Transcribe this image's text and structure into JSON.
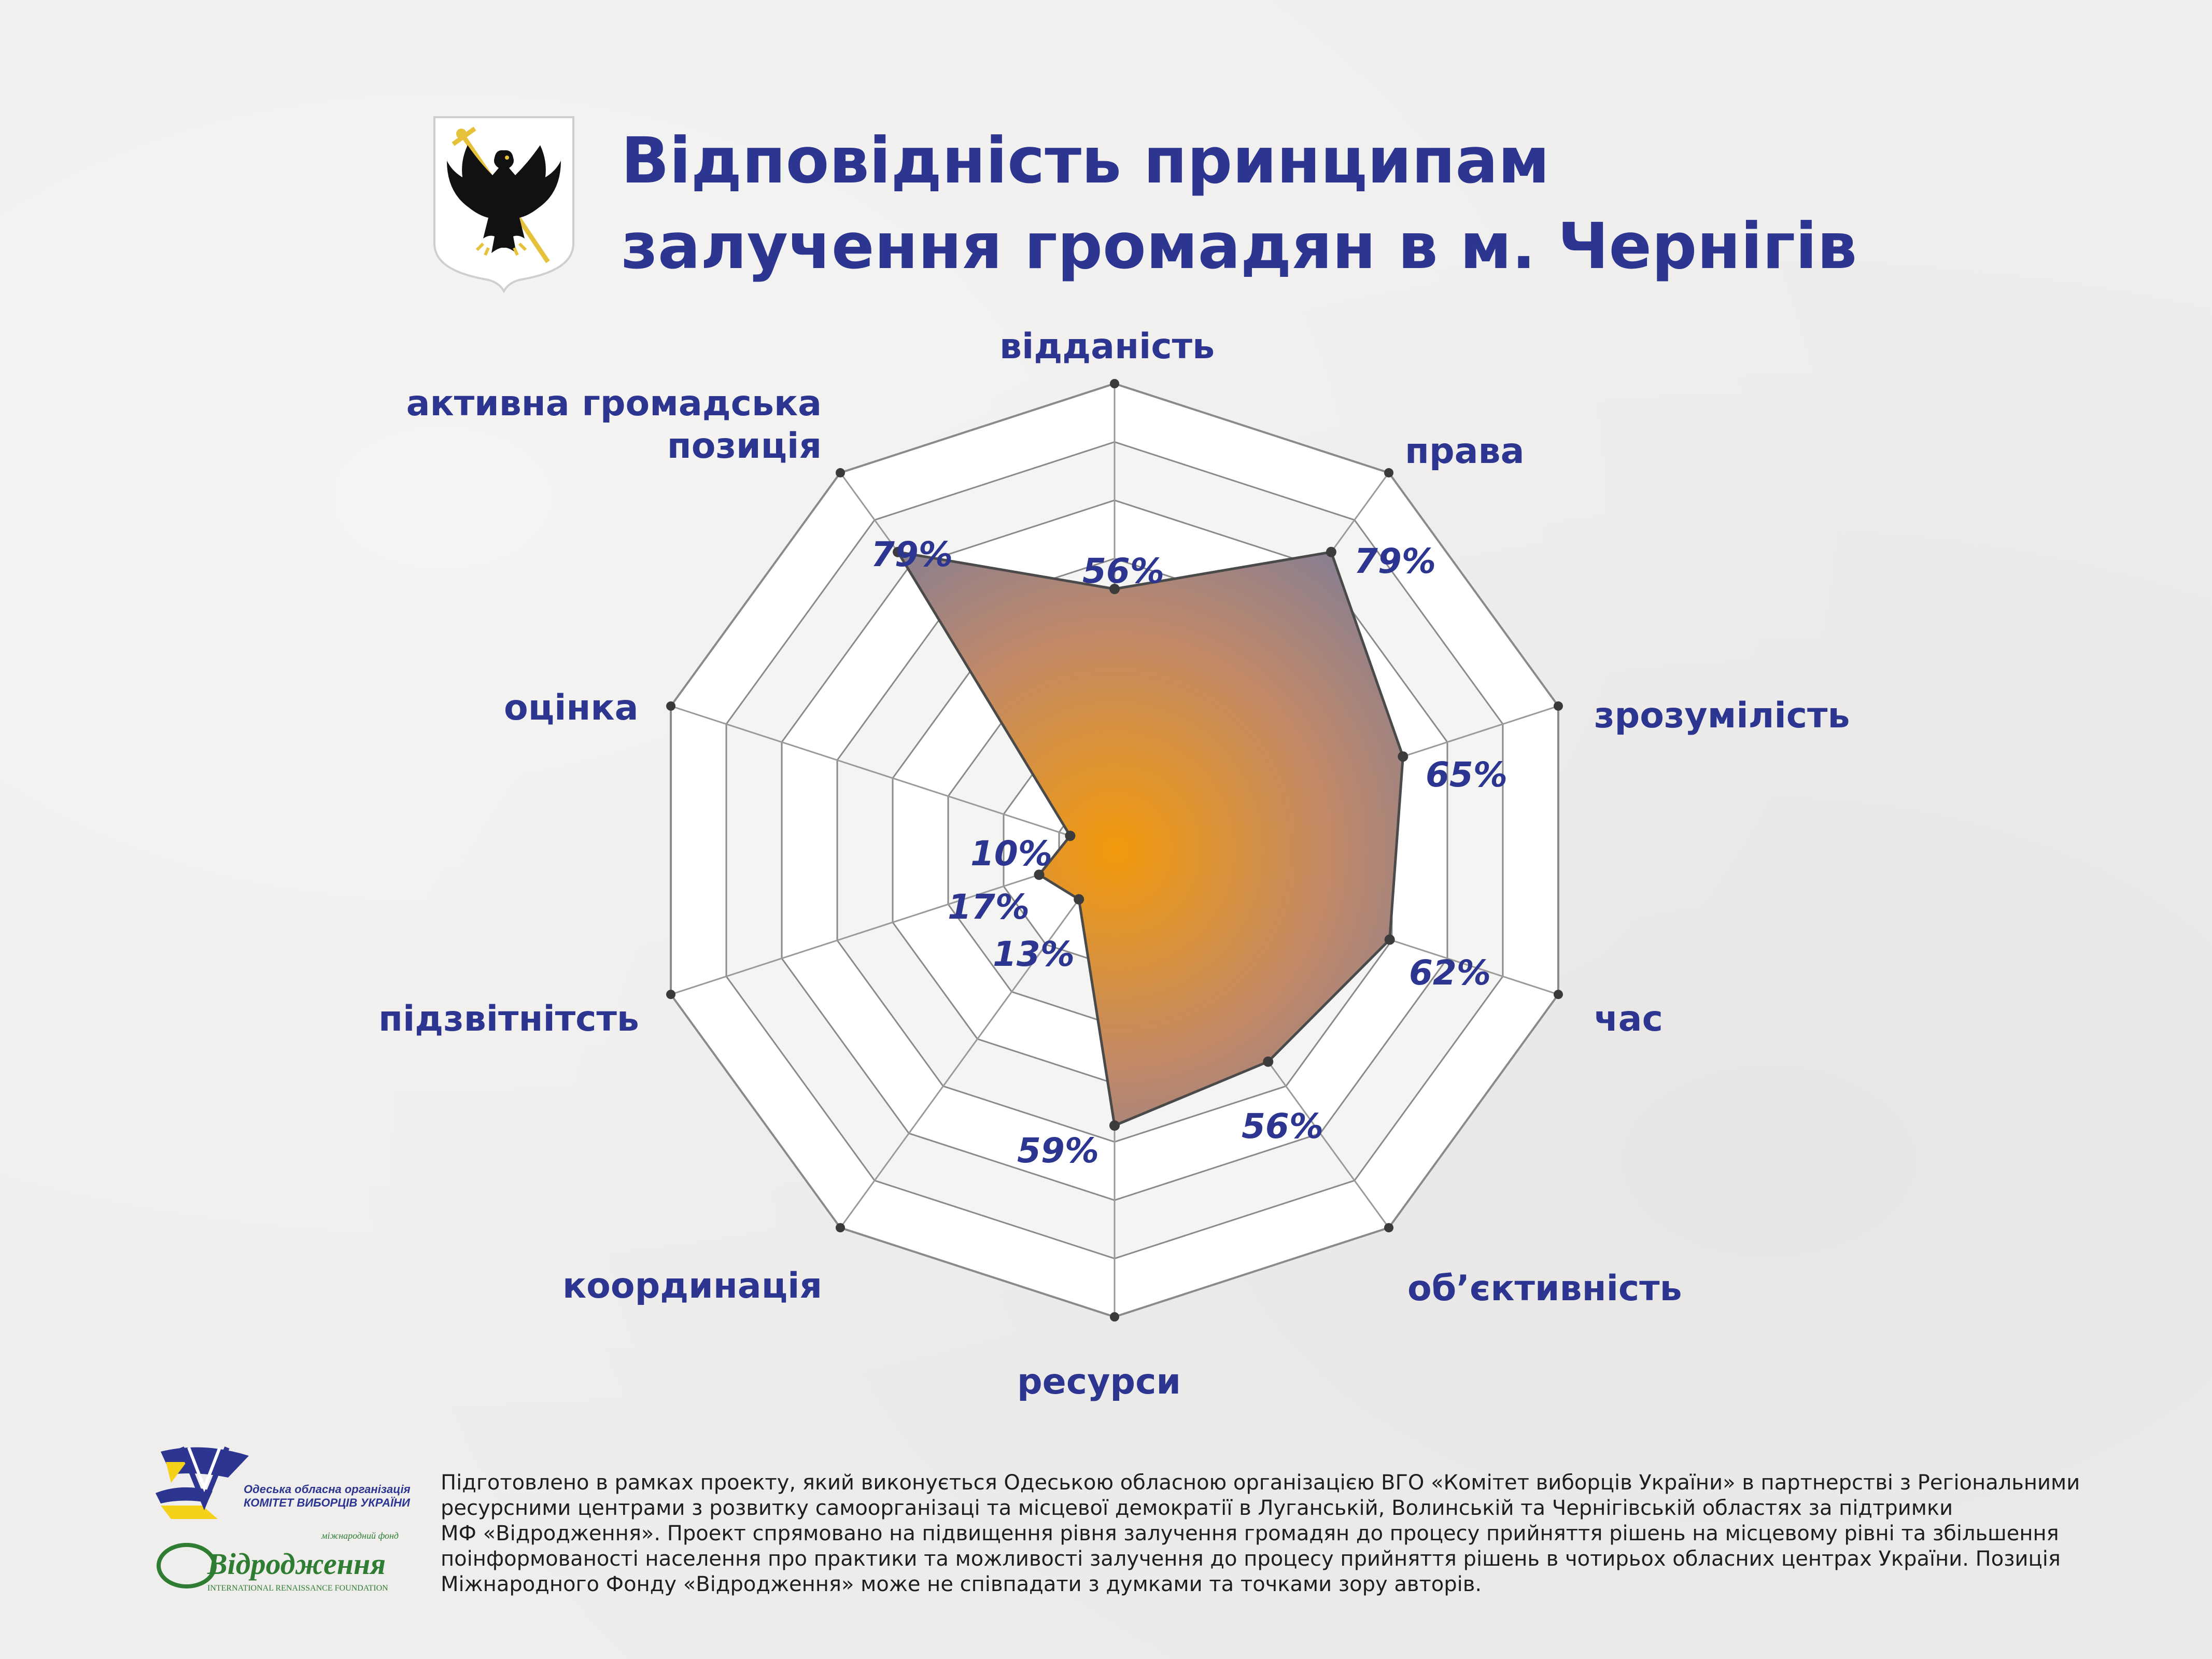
{
  "header": {
    "title_lines": [
      "Відповідність принципам",
      "залучення громадян в м. Чернігів"
    ]
  },
  "colors": {
    "title": "#2c3590",
    "grid": "#8a8a8a",
    "fill_center": "#f29a0c",
    "fill_edge": "#7a7c9a",
    "polygon_stroke": "#4a4a4a"
  },
  "chart_data": {
    "type": "radar",
    "scale": [
      0,
      100
    ],
    "grid_rings": 8,
    "categories": [
      "відданість",
      "права",
      "зрозумілість",
      "час",
      "об’єктивність",
      "ресурси",
      "координація",
      "підзвітнітсть",
      "оцінка",
      "активна громадська позиція"
    ],
    "values": [
      56,
      79,
      65,
      62,
      56,
      59,
      13,
      17,
      10,
      79
    ],
    "value_labels": [
      "56%",
      "79%",
      "65%",
      "62%",
      "56%",
      "59%",
      "13%",
      "17%",
      "10%",
      "79%"
    ]
  },
  "footer": {
    "org_logo_text": [
      "Одеська обласна організація",
      "КОМІТЕТ ВИБОРЦІВ УКРАЇНИ"
    ],
    "foundation_logo_text": {
      "small": "міжнародний фонд",
      "name": "Відродження",
      "english": "INTERNATIONAL RENAISSANCE FOUNDATION"
    },
    "text_lines": [
      "Підготовлено в рамках проекту, який виконується Одеською обласною організацією ВГО «Комітет виборців України» в партнерстві з Регіональними",
      "ресурсними центрами з розвитку самоорганізаці та місцевої демократії в Луганській, Волинській та Чернігівській областях за підтримки",
      "МФ «Відродження». Проект спрямовано на підвищення рівня залучення громадян до процесу прийняття рішень на місцевому рівні та збільшення",
      "поінформованості населення про практики та можливості залучення до процесу прийняття рішень в чотирьох обласних центрах України. Позиція",
      "Міжнародного Фонду «Відродження» може не співпадати з думками та точками зору авторів."
    ]
  }
}
